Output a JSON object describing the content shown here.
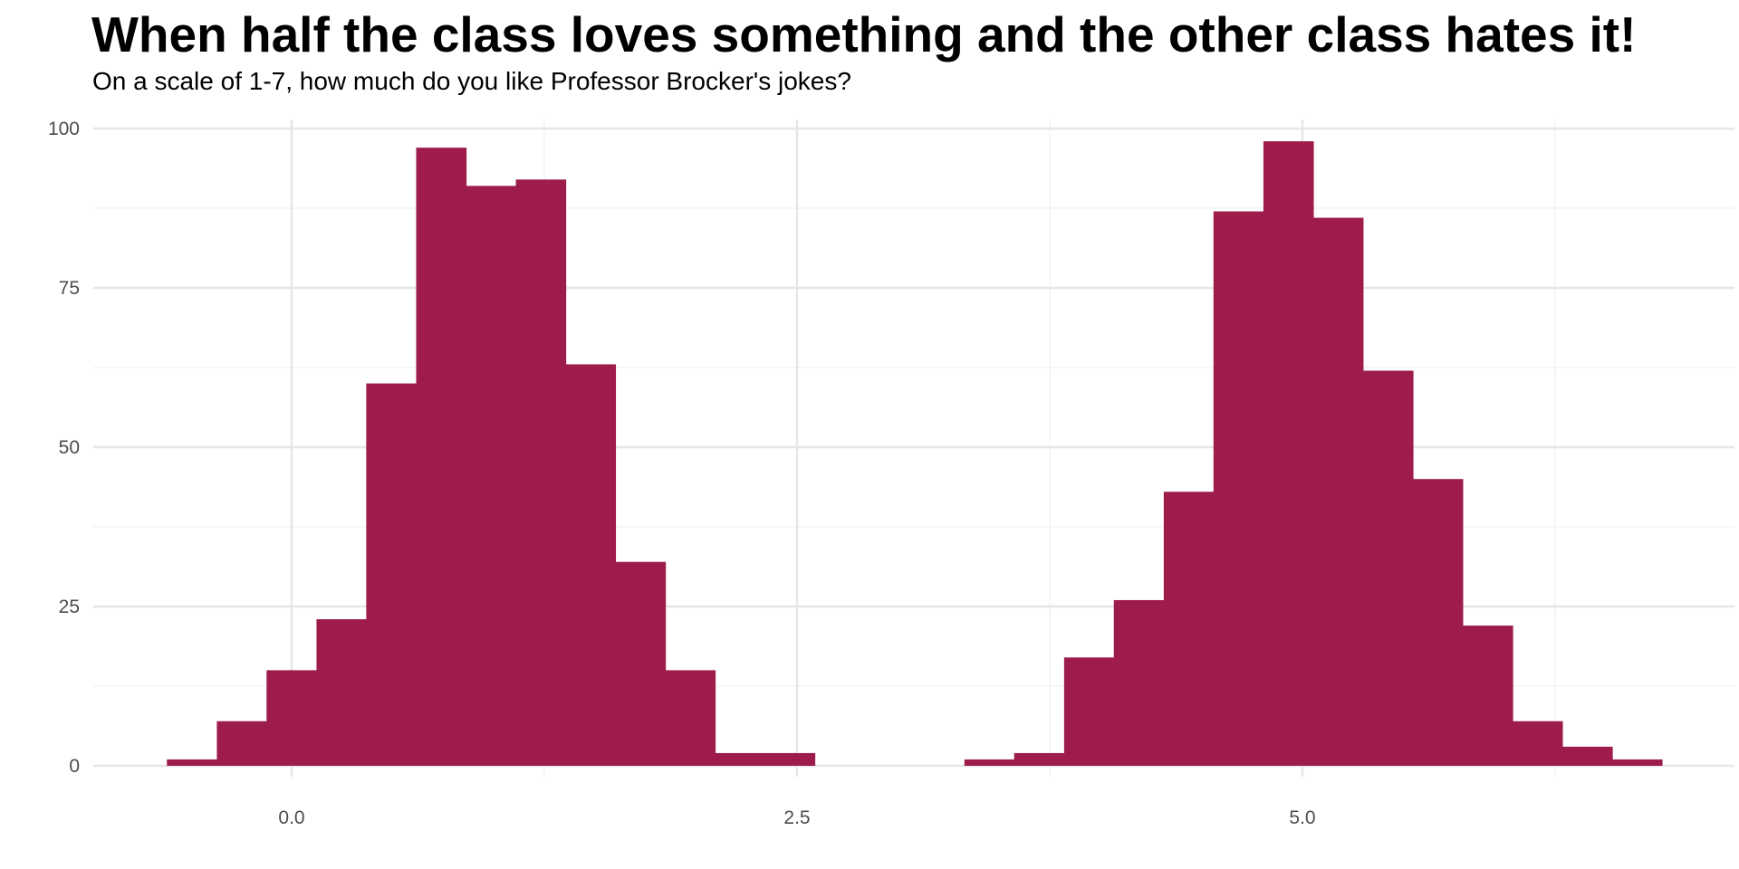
{
  "title": "When half the class loves something and the other class hates it!",
  "subtitle": "On a scale of 1-7, how much do you like Professor Brocker's jokes?",
  "colors": {
    "bar": "#9e1c4c",
    "grid_major": "#e6e6e6",
    "grid_minor": "#f0f0f0",
    "tick_text": "#4d4d4d",
    "background": "#ffffff"
  },
  "chart_data": {
    "type": "bar",
    "subtype": "histogram",
    "title": "When half the class loves something and the other class hates it!",
    "subtitle": "On a scale of 1-7, how much do you like Professor Brocker's jokes?",
    "xlabel": "",
    "ylabel": "",
    "xlim": [
      -0.97,
      7.15
    ],
    "ylim": [
      0,
      100
    ],
    "grid": true,
    "legend": "none",
    "x_ticks": [
      {
        "value": 0,
        "label": "0.0"
      },
      {
        "value": 2.5,
        "label": "2.5"
      },
      {
        "value": 5,
        "label": "5.0"
      }
    ],
    "y_ticks": [
      {
        "value": 0,
        "label": "0"
      },
      {
        "value": 25,
        "label": "25"
      },
      {
        "value": 50,
        "label": "50"
      },
      {
        "value": 75,
        "label": "75"
      },
      {
        "value": 100,
        "label": "100"
      }
    ],
    "x_minor_ticks": [
      1.25,
      3.75,
      6.25
    ],
    "y_minor_ticks": [
      12.5,
      37.5,
      62.5,
      87.5
    ],
    "bin_width": 0.2465,
    "bins": [
      {
        "x0": -0.617,
        "count": 1
      },
      {
        "x0": -0.37,
        "count": 7
      },
      {
        "x0": -0.124,
        "count": 15
      },
      {
        "x0": 0.123,
        "count": 23
      },
      {
        "x0": 0.369,
        "count": 60
      },
      {
        "x0": 0.616,
        "count": 97
      },
      {
        "x0": 0.862,
        "count": 91
      },
      {
        "x0": 1.109,
        "count": 92
      },
      {
        "x0": 1.355,
        "count": 63
      },
      {
        "x0": 1.602,
        "count": 32
      },
      {
        "x0": 1.848,
        "count": 15
      },
      {
        "x0": 2.095,
        "count": 2
      },
      {
        "x0": 2.341,
        "count": 2
      },
      {
        "x0": 3.328,
        "count": 1
      },
      {
        "x0": 3.574,
        "count": 2
      },
      {
        "x0": 3.821,
        "count": 17
      },
      {
        "x0": 4.067,
        "count": 26
      },
      {
        "x0": 4.314,
        "count": 43
      },
      {
        "x0": 4.56,
        "count": 87
      },
      {
        "x0": 4.807,
        "count": 98
      },
      {
        "x0": 5.053,
        "count": 86
      },
      {
        "x0": 5.3,
        "count": 62
      },
      {
        "x0": 5.546,
        "count": 45
      },
      {
        "x0": 5.793,
        "count": 22
      },
      {
        "x0": 6.039,
        "count": 7
      },
      {
        "x0": 6.286,
        "count": 3
      },
      {
        "x0": 6.532,
        "count": 1
      }
    ]
  }
}
